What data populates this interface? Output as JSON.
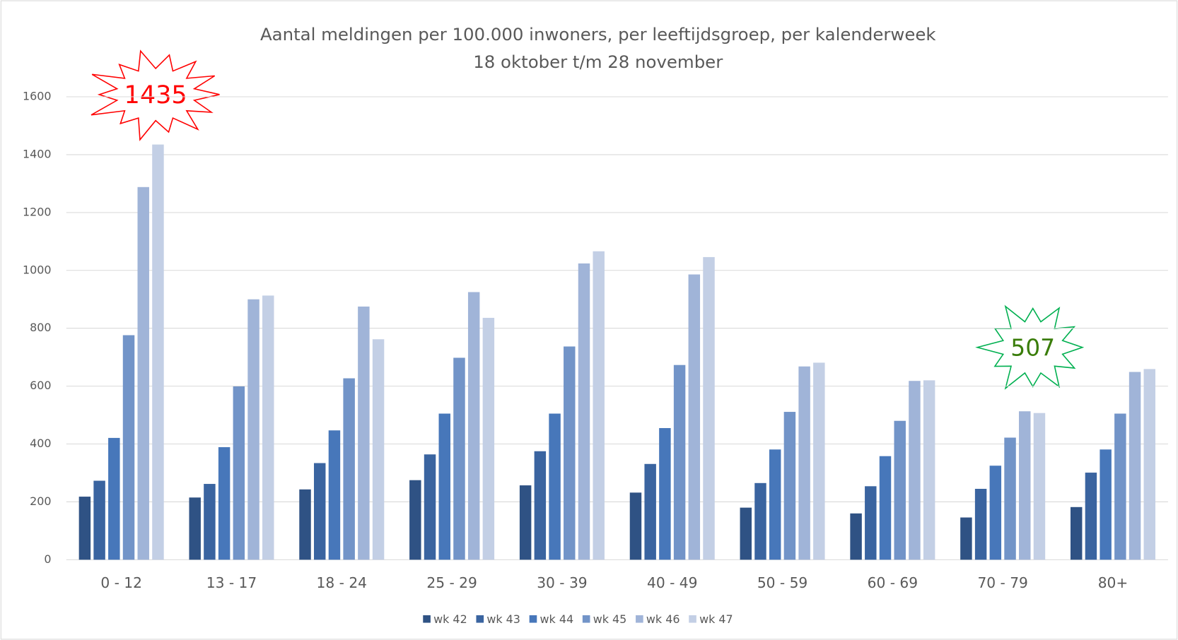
{
  "chart_data": {
    "type": "bar",
    "title": "Aantal meldingen per 100.000 inwoners, per leeftijdsgroep, per kalenderweek",
    "subtitle": "18 oktober t/m 28 november",
    "categories": [
      "0 - 12",
      "13 - 17",
      "18 - 24",
      "25 - 29",
      "30 - 39",
      "40 - 49",
      "50 - 59",
      "60 - 69",
      "70 - 79",
      "80+"
    ],
    "series": [
      {
        "name": "wk 42",
        "color": "#2f5284",
        "values": [
          218,
          215,
          243,
          275,
          257,
          232,
          180,
          160,
          146,
          182
        ]
      },
      {
        "name": "wk 43",
        "color": "#3a64a0",
        "values": [
          273,
          262,
          334,
          364,
          375,
          331,
          265,
          254,
          245,
          301
        ]
      },
      {
        "name": "wk 44",
        "color": "#4777ba",
        "values": [
          421,
          389,
          447,
          505,
          505,
          455,
          381,
          358,
          325,
          381
        ]
      },
      {
        "name": "wk 45",
        "color": "#7294c8",
        "values": [
          776,
          599,
          627,
          698,
          737,
          673,
          511,
          480,
          422,
          505
        ]
      },
      {
        "name": "wk 46",
        "color": "#a0b4d8",
        "values": [
          1288,
          900,
          875,
          925,
          1024,
          986,
          668,
          618,
          513,
          649
        ]
      },
      {
        "name": "wk 47",
        "color": "#c3cfe5",
        "values": [
          1435,
          913,
          762,
          836,
          1066,
          1046,
          681,
          620,
          507,
          659
        ]
      }
    ],
    "ylim": [
      0,
      1600
    ],
    "yticks": [
      0,
      200,
      400,
      600,
      800,
      1000,
      1200,
      1400,
      1600
    ],
    "grid": true,
    "legend": "bottom"
  }
}
